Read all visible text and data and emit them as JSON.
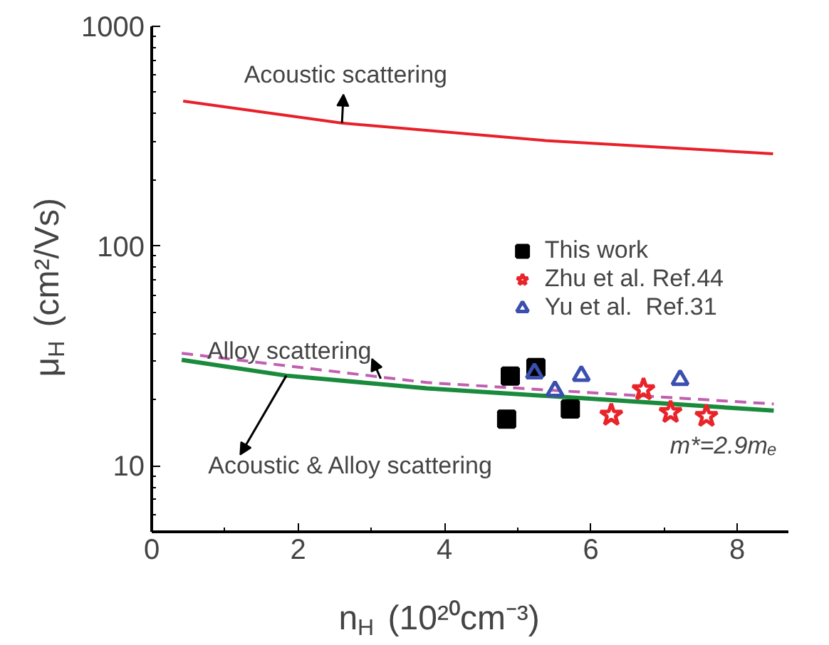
{
  "chart_data": {
    "type": "scatter",
    "xlabel": "n$_{H}$ (10²⁰cm⁻³)",
    "ylabel": "μ$_{H}$ (cm²/Vs)",
    "xlim": [
      0,
      8.7
    ],
    "ylim": [
      5,
      1000
    ],
    "log": true,
    "xticks": [
      0,
      2,
      4,
      6,
      8
    ],
    "yticks": [
      10,
      100,
      1000
    ],
    "grid": false,
    "legend": "right",
    "series": [
      {
        "type": "line",
        "color": "#e8202a",
        "marker": "none",
        "line_style": "solid",
        "x": [
          0.43,
          2.59,
          5.38,
          8.49
        ],
        "values": [
          457,
          363,
          302,
          263
        ]
      },
      {
        "type": "line",
        "color": "#c060b0",
        "marker": "none",
        "line_style": "dashed",
        "x": [
          0.41,
          3.76,
          8.5
        ],
        "values": [
          32.5,
          23.9,
          19.1
        ]
      },
      {
        "type": "line",
        "color": "#1a8a3c",
        "marker": "none",
        "line_style": "solid",
        "x": [
          0.41,
          1.84,
          3.76,
          6.18,
          8.5
        ],
        "values": [
          30.3,
          25.7,
          22.5,
          20.0,
          17.8
        ]
      },
      {
        "name": "This work",
        "color": "#000000",
        "marker": "square",
        "x": [
          4.9,
          4.85,
          5.25,
          5.72
        ],
        "values": [
          25.6,
          16.3,
          28,
          18.1
        ]
      },
      {
        "name": "Zhu et al. Ref.44",
        "color": "#e8242a",
        "marker": "star",
        "x": [
          6.28,
          6.72,
          7.09,
          7.58
        ],
        "values": [
          17.0,
          22.2,
          17.5,
          16.8
        ]
      },
      {
        "name": "Yu et al.  Ref.31",
        "color": "#3a4fae",
        "marker": "triangle",
        "x": [
          5.23,
          5.51,
          5.87,
          7.22
        ],
        "values": [
          26.4,
          21.9,
          25.7,
          24.6
        ]
      }
    ],
    "annotations": [
      {
        "text": "Acoustic scattering",
        "x": 2.6,
        "y": 363
      },
      {
        "text": "Alloy scattering",
        "x": 3.13,
        "y": 24.9
      },
      {
        "text": "Acoustic & Alloy scattering",
        "x": 1.84,
        "y": 25.7
      },
      "m*=2.9mₑ"
    ]
  }
}
